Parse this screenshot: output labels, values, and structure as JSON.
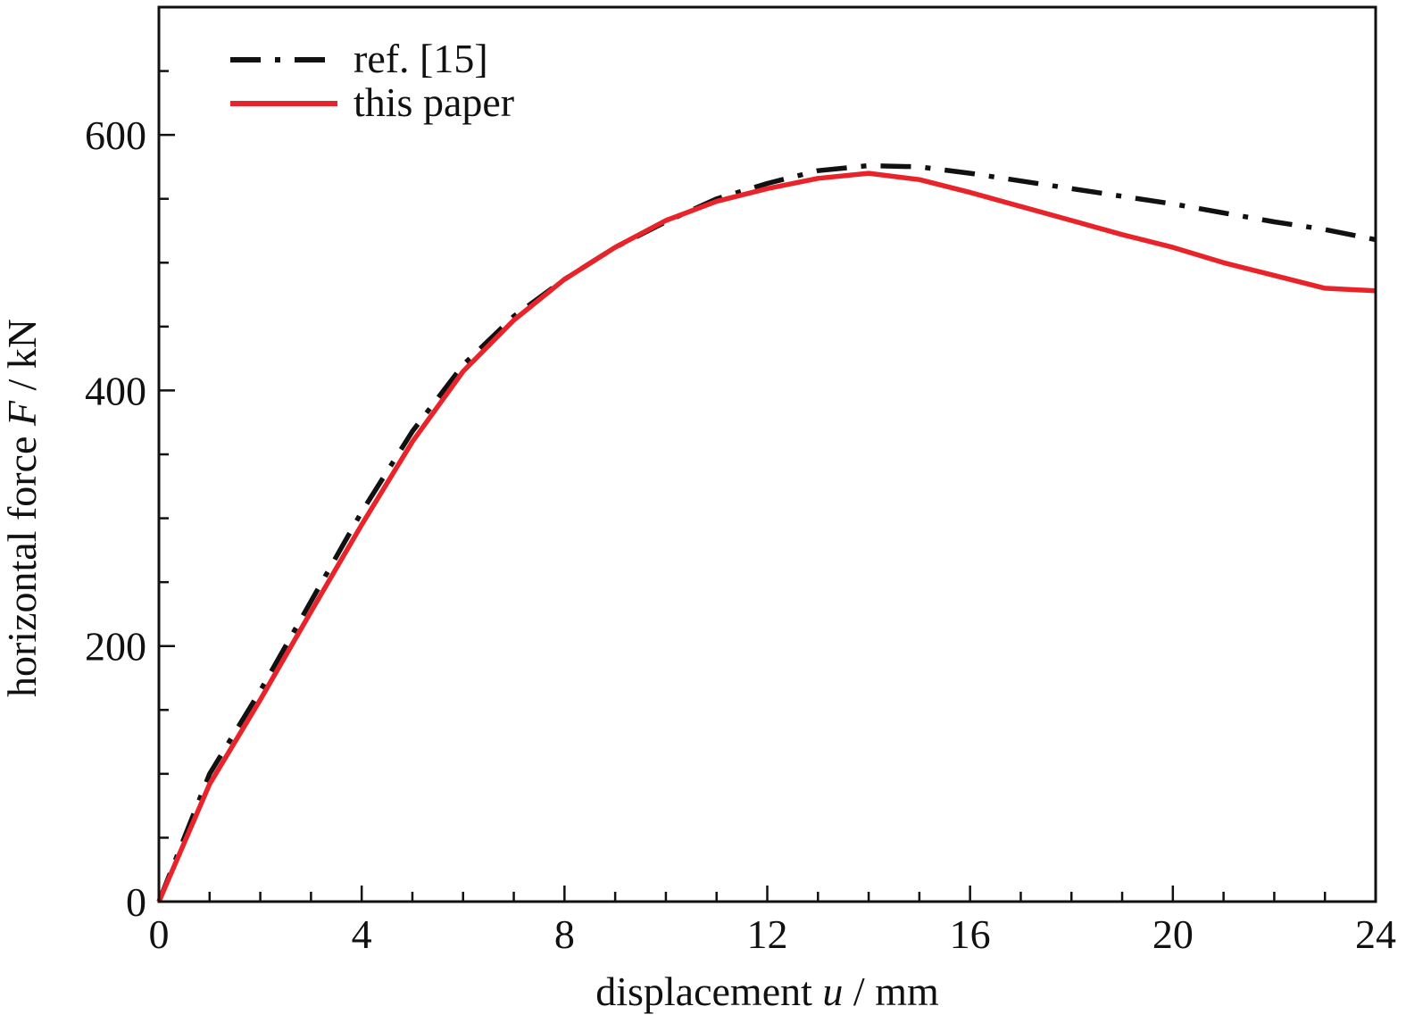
{
  "chart_data": {
    "type": "line",
    "xlabel": {
      "prefix": "displacement ",
      "var": "u",
      "suffix": " / mm"
    },
    "ylabel": {
      "prefix": "horizontal force ",
      "var": "F",
      "suffix": " / kN"
    },
    "xlim": [
      0,
      24
    ],
    "ylim": [
      0,
      700
    ],
    "x_ticks": [
      0,
      4,
      8,
      12,
      16,
      20,
      24
    ],
    "y_ticks": [
      0,
      200,
      400,
      600
    ],
    "x_minor_step": 1,
    "y_minor_step": 50,
    "grid": false,
    "legend_position": "top-left",
    "series": [
      {
        "name": "ref. [15]",
        "color": "#111111",
        "style": "dash-dot",
        "x": [
          0,
          1,
          2,
          3,
          4,
          5,
          6,
          7,
          8,
          9,
          10,
          11,
          12,
          13,
          14,
          15,
          16,
          17,
          18,
          19,
          20,
          21,
          22,
          23,
          24
        ],
        "y": [
          0,
          100,
          165,
          235,
          305,
          368,
          420,
          458,
          487,
          512,
          532,
          550,
          562,
          572,
          576,
          575,
          570,
          564,
          558,
          552,
          546,
          539,
          532,
          526,
          518
        ]
      },
      {
        "name": "this paper",
        "color": "#e8232a",
        "style": "solid",
        "x": [
          0,
          1,
          2,
          3,
          4,
          5,
          6,
          7,
          8,
          9,
          10,
          11,
          12,
          13,
          14,
          15,
          16,
          17,
          18,
          19,
          20,
          21,
          22,
          23,
          24
        ],
        "y": [
          0,
          92,
          158,
          227,
          295,
          360,
          415,
          455,
          487,
          512,
          533,
          548,
          558,
          566,
          570,
          565,
          555,
          544,
          533,
          522,
          512,
          500,
          490,
          480,
          478
        ]
      }
    ]
  }
}
